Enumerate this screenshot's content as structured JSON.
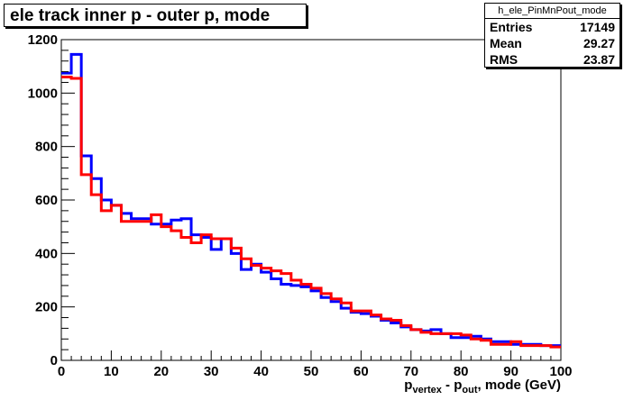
{
  "title": "ele track inner p - outer p, mode",
  "stats": {
    "name": "h_ele_PinMnPout_mode",
    "rows": [
      {
        "label": "Entries",
        "value": "17149"
      },
      {
        "label": "Mean",
        "value": "29.27"
      },
      {
        "label": "RMS",
        "value": "23.87"
      }
    ]
  },
  "chart_data": {
    "type": "line",
    "title": "ele track inner p - outer p, mode",
    "xlabel_parts": [
      "p",
      "vertex",
      " - p",
      "out",
      ", mode (GeV)"
    ],
    "xlim": [
      0,
      100
    ],
    "ylim": [
      0,
      1200
    ],
    "x_ticks": [
      0,
      10,
      20,
      30,
      40,
      50,
      60,
      70,
      80,
      90,
      100
    ],
    "y_ticks": [
      0,
      200,
      400,
      600,
      800,
      1000,
      1200
    ],
    "bin_edges_start": 0,
    "bin_width": 2,
    "series": [
      {
        "color": "#0000ff",
        "values": [
          1075,
          1145,
          765,
          680,
          600,
          580,
          550,
          530,
          530,
          510,
          510,
          525,
          530,
          470,
          460,
          415,
          455,
          400,
          340,
          360,
          330,
          305,
          285,
          280,
          275,
          260,
          235,
          220,
          195,
          180,
          175,
          165,
          150,
          140,
          125,
          115,
          110,
          115,
          100,
          85,
          85,
          90,
          80,
          70,
          70,
          60,
          60,
          60,
          55,
          55
        ]
      },
      {
        "color": "#ff0000",
        "values": [
          1060,
          1055,
          695,
          620,
          560,
          580,
          520,
          520,
          520,
          545,
          500,
          485,
          460,
          440,
          470,
          455,
          455,
          420,
          380,
          355,
          345,
          335,
          325,
          300,
          285,
          270,
          250,
          230,
          215,
          185,
          185,
          170,
          155,
          150,
          130,
          115,
          105,
          100,
          100,
          100,
          95,
          80,
          75,
          60,
          60,
          70,
          55,
          55,
          55,
          50
        ]
      }
    ]
  }
}
